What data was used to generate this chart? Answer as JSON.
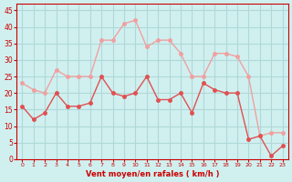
{
  "x": [
    0,
    1,
    2,
    3,
    4,
    5,
    6,
    7,
    8,
    9,
    10,
    11,
    12,
    13,
    14,
    15,
    16,
    17,
    18,
    19,
    20,
    21,
    22,
    23
  ],
  "wind_avg": [
    16,
    12,
    14,
    20,
    16,
    16,
    17,
    25,
    20,
    19,
    20,
    25,
    18,
    18,
    20,
    14,
    23,
    21,
    20,
    20,
    6,
    7,
    1,
    4
  ],
  "wind_gust": [
    23,
    21,
    20,
    27,
    25,
    25,
    25,
    36,
    36,
    41,
    42,
    34,
    36,
    36,
    32,
    25,
    25,
    32,
    32,
    31,
    25,
    7,
    8,
    8
  ],
  "avg_color": "#e05050",
  "gust_color": "#f0a0a0",
  "bg_color": "#d0f0f0",
  "grid_color": "#b0d8d8",
  "xlabel": "Vent moyen/en rafales ( km/h )",
  "xlabel_color": "#cc0000",
  "ylabel_values": [
    0,
    5,
    10,
    15,
    20,
    25,
    30,
    35,
    40,
    45
  ],
  "ylim": [
    0,
    47
  ],
  "xlim": [
    -0.5,
    23.5
  ],
  "title_color": "#cc0000",
  "tick_color": "#cc0000",
  "spine_color": "#cc0000"
}
